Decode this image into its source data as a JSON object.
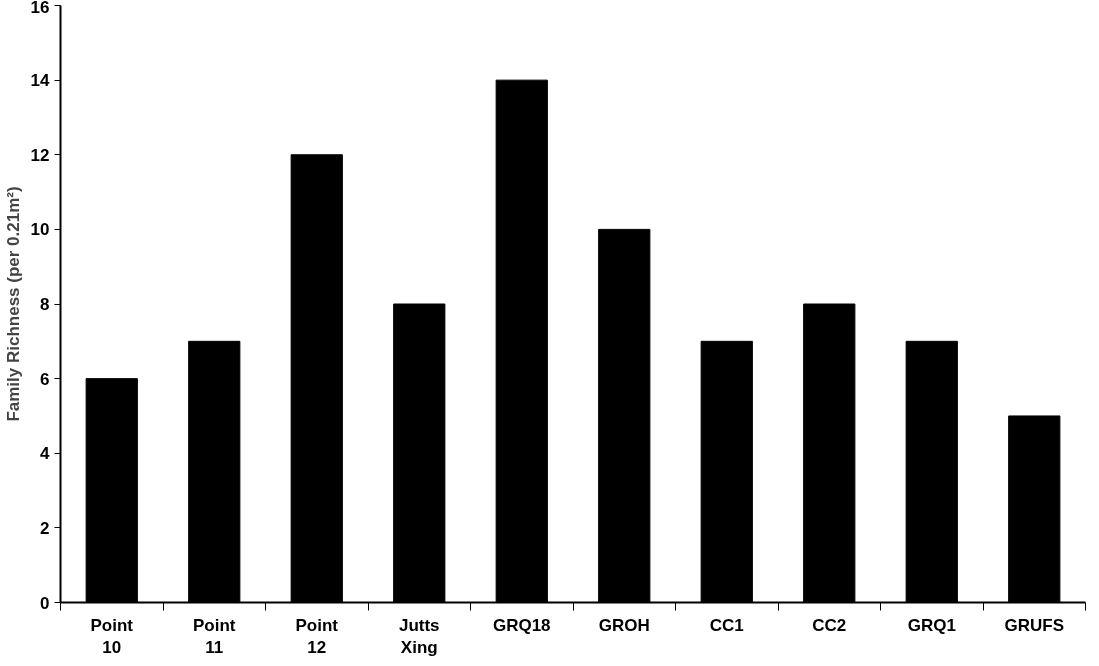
{
  "chart_data": {
    "type": "bar",
    "ylabel": "Family Richness (per 0.21m²)",
    "categories": [
      "Point 10",
      "Point 11",
      "Point 12",
      "Jutts Xing",
      "GRQ18",
      "GROH",
      "CC1",
      "CC2",
      "GRQ1",
      "GRUFS"
    ],
    "values": [
      6,
      7,
      12,
      8,
      14,
      10,
      7,
      8,
      7,
      5
    ],
    "color": "#000000",
    "ylim": [
      0,
      16
    ],
    "yticks": [
      0,
      2,
      4,
      6,
      8,
      10,
      12,
      14,
      16
    ],
    "grid": false,
    "legend": false
  }
}
